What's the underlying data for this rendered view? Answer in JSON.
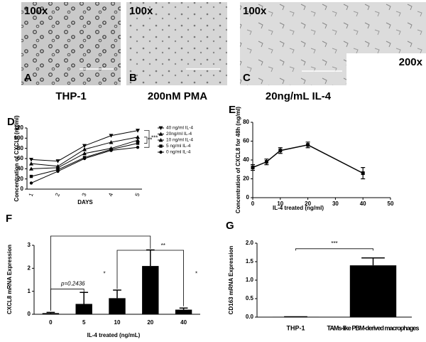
{
  "image_panels": [
    {
      "magnification": "100x",
      "label": "A",
      "caption": "THP-1"
    },
    {
      "magnification": "100x",
      "label": "B",
      "caption": "200nM PMA"
    },
    {
      "magnification": "100x",
      "label": "C",
      "caption": "20ng/mL IL-4",
      "inset_magnification": "200x"
    }
  ],
  "chart_data": [
    {
      "type": "line",
      "label": "D",
      "xlabel": "DAYS",
      "ylabel": "Concentration of CXCL8 (ng/ml)",
      "categories": [
        "1",
        "2",
        "3",
        "4",
        "5"
      ],
      "series": [
        {
          "name": "40 ng/ml IL-4",
          "color": "#000000",
          "marker": "triangle-down",
          "values": [
            58,
            55,
            85,
            105,
            115
          ]
        },
        {
          "name": "20ng/ml IL-4",
          "color": "#000000",
          "marker": "triangle",
          "values": [
            50,
            45,
            78,
            92,
            102
          ]
        },
        {
          "name": "10 ng/ml IL-4",
          "color": "#000000",
          "marker": "triangle",
          "values": [
            40,
            42,
            70,
            80,
            96
          ]
        },
        {
          "name": "5 ng/ml IL-4",
          "color": "#000000",
          "marker": "square",
          "values": [
            25,
            38,
            62,
            78,
            90
          ]
        },
        {
          "name": "0 ng/ml IL-4",
          "color": "#000000",
          "marker": "circle",
          "values": [
            12,
            35,
            60,
            76,
            82
          ]
        }
      ],
      "ylim": [
        0,
        120
      ],
      "yticks": [
        0,
        20,
        40,
        60,
        80,
        100,
        120
      ],
      "annotations": [
        "**",
        "***"
      ]
    },
    {
      "type": "errorline",
      "label": "E",
      "xlabel": "IL-4 treated (ng/ml)",
      "ylabel": "Concentration of CXCL8 for 48h (ng/ml)",
      "x": [
        0,
        5,
        10,
        20,
        40
      ],
      "series": [
        {
          "color": "#000000",
          "values": [
            32,
            38,
            50,
            56,
            26
          ],
          "errors": [
            3,
            3,
            3,
            3,
            6
          ]
        }
      ],
      "xlim": [
        0,
        50
      ],
      "xticks": [
        0,
        10,
        20,
        30,
        40,
        50
      ],
      "ylim": [
        0,
        80
      ],
      "yticks": [
        0,
        20,
        40,
        60,
        80
      ]
    },
    {
      "type": "bar",
      "label": "F",
      "xlabel": "IL-4 treated (ng/mL)",
      "ylabel": "CXCL8 mRNA Expression",
      "categories": [
        "0",
        "5",
        "10",
        "20",
        "40"
      ],
      "values": [
        0.05,
        0.45,
        0.7,
        2.1,
        0.2
      ],
      "errors": [
        0.03,
        0.5,
        0.35,
        0.7,
        0.07
      ],
      "color": "#000000",
      "ylim": [
        0,
        3
      ],
      "yticks": [
        0,
        1,
        2,
        3
      ],
      "annotations": [
        "p=0.2436",
        "*",
        "**",
        "*"
      ]
    },
    {
      "type": "bar",
      "label": "G",
      "ylabel": "CD163 mRNA Expression",
      "categories": [
        "THP-1",
        "TAMs-like PBM-derived macrophages"
      ],
      "values": [
        0.01,
        1.4
      ],
      "errors": [
        0,
        0.2
      ],
      "color": "#000000",
      "ylim": [
        0,
        2
      ],
      "yticks": [
        {
          "value": 0,
          "label": "0.0"
        },
        {
          "value": 0.5,
          "label": "0.5"
        },
        {
          "value": 1,
          "label": "1.0"
        },
        {
          "value": 1.5,
          "label": "1.5"
        },
        {
          "value": 2,
          "label": "2.0"
        }
      ],
      "annotations": [
        "***"
      ]
    }
  ]
}
